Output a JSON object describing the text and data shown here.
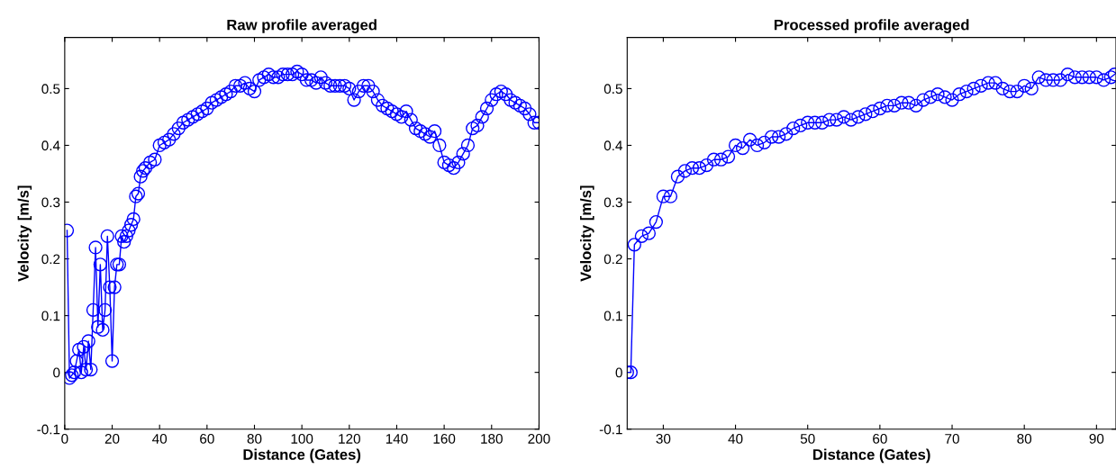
{
  "chart_data": [
    {
      "type": "line",
      "title": "Raw profile averaged",
      "xlabel": "Distance (Gates)",
      "ylabel": "Velocity [m/s]",
      "marker": "circle",
      "line_style": "solid",
      "grid": false,
      "legend": false,
      "xlim": [
        0,
        200
      ],
      "xticks": [
        0,
        20,
        40,
        60,
        80,
        100,
        120,
        140,
        160,
        180,
        200
      ],
      "ylim": [
        -0.1,
        0.59
      ],
      "yticks": [
        -0.1,
        0,
        0.1,
        0.2,
        0.3,
        0.4,
        0.5
      ],
      "series": [
        {
          "color": "#0000ff",
          "x": [
            1,
            2,
            3,
            4,
            5,
            6,
            7,
            8,
            9,
            10,
            11,
            12,
            13,
            14,
            15,
            16,
            17,
            18,
            19,
            20,
            21,
            22,
            23,
            24,
            25,
            26,
            27,
            28,
            29,
            30,
            31,
            32,
            33,
            34,
            36,
            38,
            40,
            42,
            44,
            46,
            48,
            50,
            52,
            54,
            56,
            58,
            60,
            62,
            64,
            66,
            68,
            70,
            72,
            74,
            76,
            78,
            80,
            82,
            84,
            86,
            88,
            90,
            92,
            94,
            96,
            98,
            100,
            102,
            104,
            106,
            108,
            110,
            112,
            114,
            116,
            118,
            120,
            122,
            124,
            126,
            128,
            130,
            132,
            134,
            136,
            138,
            140,
            142,
            144,
            146,
            148,
            150,
            152,
            154,
            156,
            158,
            160,
            162,
            164,
            166,
            168,
            170,
            172,
            174,
            176,
            178,
            180,
            182,
            184,
            186,
            188,
            190,
            192,
            194,
            196,
            198,
            200
          ],
          "values": [
            0.25,
            -0.01,
            -0.005,
            0.0,
            0.02,
            0.04,
            0.0,
            0.045,
            0.005,
            0.055,
            0.005,
            0.11,
            0.22,
            0.08,
            0.19,
            0.075,
            0.11,
            0.24,
            0.15,
            0.02,
            0.15,
            0.19,
            0.19,
            0.24,
            0.23,
            0.24,
            0.25,
            0.26,
            0.27,
            0.31,
            0.315,
            0.345,
            0.355,
            0.36,
            0.37,
            0.375,
            0.4,
            0.405,
            0.41,
            0.42,
            0.43,
            0.44,
            0.445,
            0.45,
            0.455,
            0.46,
            0.465,
            0.475,
            0.48,
            0.485,
            0.49,
            0.495,
            0.505,
            0.505,
            0.51,
            0.5,
            0.495,
            0.515,
            0.52,
            0.525,
            0.52,
            0.52,
            0.525,
            0.525,
            0.525,
            0.53,
            0.525,
            0.515,
            0.515,
            0.51,
            0.52,
            0.51,
            0.505,
            0.505,
            0.505,
            0.505,
            0.5,
            0.48,
            0.495,
            0.505,
            0.505,
            0.495,
            0.48,
            0.47,
            0.465,
            0.46,
            0.455,
            0.45,
            0.46,
            0.445,
            0.43,
            0.425,
            0.42,
            0.415,
            0.425,
            0.4,
            0.37,
            0.365,
            0.36,
            0.37,
            0.385,
            0.4,
            0.43,
            0.435,
            0.45,
            0.465,
            0.48,
            0.49,
            0.495,
            0.49,
            0.48,
            0.475,
            0.47,
            0.465,
            0.455,
            0.44,
            0.44
          ]
        }
      ]
    },
    {
      "type": "line",
      "title": "Processed profile averaged",
      "xlabel": "Distance (Gates)",
      "ylabel": "Velocity [m/s]",
      "marker": "circle",
      "line_style": "solid",
      "grid": false,
      "legend": false,
      "xlim": [
        25,
        92.7
      ],
      "xticks": [
        30,
        40,
        50,
        60,
        70,
        80,
        90
      ],
      "ylim": [
        -0.1,
        0.59
      ],
      "yticks": [
        -0.1,
        0,
        0.1,
        0.2,
        0.3,
        0.4,
        0.5
      ],
      "series": [
        {
          "color": "#0000ff",
          "x": [
            25,
            25.5,
            26,
            27,
            28,
            29,
            30,
            31,
            32,
            33,
            34,
            35,
            36,
            37,
            38,
            39,
            40,
            41,
            42,
            43,
            44,
            45,
            46,
            47,
            48,
            49,
            50,
            51,
            52,
            53,
            54,
            55,
            56,
            57,
            58,
            59,
            60,
            61,
            62,
            63,
            64,
            65,
            66,
            67,
            68,
            69,
            70,
            71,
            72,
            73,
            74,
            75,
            76,
            77,
            78,
            79,
            80,
            81,
            82,
            83,
            84,
            85,
            86,
            87,
            88,
            89,
            90,
            91,
            92,
            92.5
          ],
          "values": [
            0,
            0,
            0.225,
            0.24,
            0.245,
            0.265,
            0.31,
            0.31,
            0.345,
            0.355,
            0.36,
            0.36,
            0.365,
            0.375,
            0.375,
            0.38,
            0.4,
            0.395,
            0.41,
            0.4,
            0.405,
            0.415,
            0.415,
            0.42,
            0.43,
            0.435,
            0.44,
            0.44,
            0.44,
            0.445,
            0.445,
            0.45,
            0.445,
            0.45,
            0.455,
            0.46,
            0.465,
            0.47,
            0.47,
            0.475,
            0.475,
            0.47,
            0.48,
            0.485,
            0.49,
            0.485,
            0.48,
            0.49,
            0.495,
            0.5,
            0.505,
            0.51,
            0.51,
            0.5,
            0.495,
            0.495,
            0.505,
            0.5,
            0.52,
            0.515,
            0.515,
            0.515,
            0.525,
            0.52,
            0.52,
            0.52,
            0.52,
            0.515,
            0.52,
            0.525
          ]
        }
      ]
    }
  ]
}
